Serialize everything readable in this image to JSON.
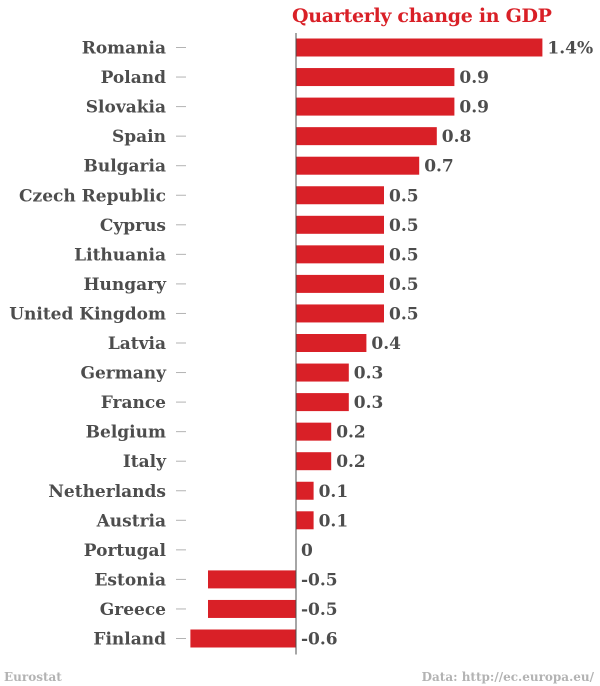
{
  "chart_data": {
    "type": "bar",
    "orientation": "horizontal",
    "title": "Quarterly change in GDP",
    "categories": [
      "Romania",
      "Poland",
      "Slovakia",
      "Spain",
      "Bulgaria",
      "Czech Republic",
      "Cyprus",
      "Lithuania",
      "Hungary",
      "United Kingdom",
      "Latvia",
      "Germany",
      "France",
      "Belgium",
      "Italy",
      "Netherlands",
      "Austria",
      "Portugal",
      "Estonia",
      "Greece",
      "Finland"
    ],
    "values": [
      1.4,
      0.9,
      0.9,
      0.8,
      0.7,
      0.5,
      0.5,
      0.5,
      0.5,
      0.5,
      0.4,
      0.3,
      0.3,
      0.2,
      0.2,
      0.1,
      0.1,
      0,
      -0.5,
      -0.5,
      -0.6
    ],
    "value_labels": [
      "1.4%",
      "0.9",
      "0.9",
      "0.8",
      "0.7",
      "0.5",
      "0.5",
      "0.5",
      "0.5",
      "0.5",
      "0.4",
      "0.3",
      "0.3",
      "0.2",
      "0.2",
      "0.1",
      "0.1",
      "0",
      "-0.5",
      "-0.5",
      "-0.6"
    ],
    "xlim": [
      -0.6,
      1.4
    ],
    "grid": false,
    "bar_color": "#d92027",
    "label_color": "#4d4d4d",
    "title_color": "#d92027"
  },
  "footer": {
    "source": "Eurostat",
    "data_credit": "Data: http://ec.europa.eu/"
  }
}
